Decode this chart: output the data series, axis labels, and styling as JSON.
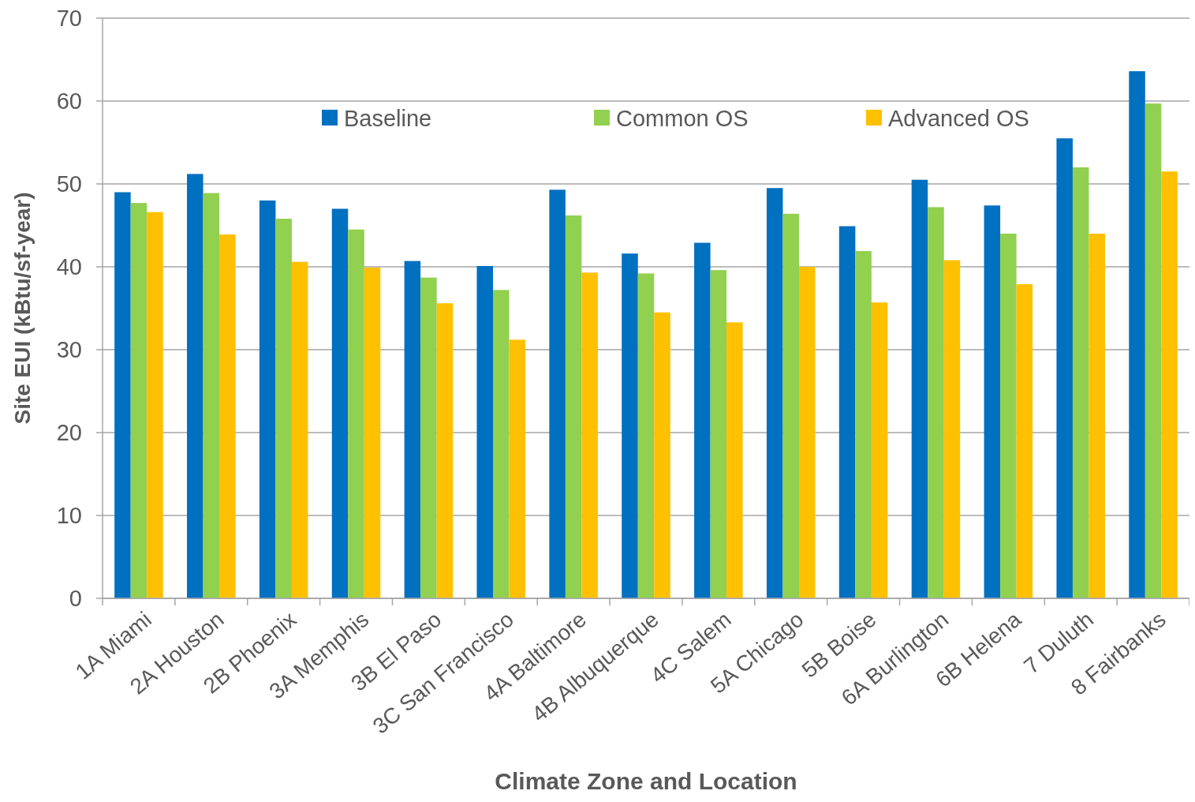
{
  "chart_data": {
    "type": "bar",
    "xlabel": "Climate Zone and Location",
    "ylabel": "Site EUI (kBtu/sf-year)",
    "categories": [
      "1A Miami",
      "2A Houston",
      "2B Phoenix",
      "3A Memphis",
      "3B El Paso",
      "3C San Francisco",
      "4A Baltimore",
      "4B Albuquerque",
      "4C Salem",
      "5A Chicago",
      "5B Boise",
      "6A Burlington",
      "6B Helena",
      "7 Duluth",
      "8 Fairbanks"
    ],
    "series": [
      {
        "name": "Baseline",
        "color": "#0070c0",
        "values": [
          49.0,
          51.2,
          48.0,
          47.0,
          40.7,
          40.1,
          49.3,
          41.6,
          42.9,
          49.5,
          44.9,
          50.5,
          47.4,
          55.5,
          63.6
        ]
      },
      {
        "name": "Common OS",
        "color": "#92d050",
        "values": [
          47.7,
          48.9,
          45.8,
          44.5,
          38.7,
          37.2,
          46.2,
          39.2,
          39.6,
          46.4,
          41.9,
          47.2,
          44.0,
          52.0,
          59.7
        ]
      },
      {
        "name": "Advanced OS",
        "color": "#ffc000",
        "values": [
          46.6,
          43.9,
          40.6,
          39.9,
          35.6,
          31.2,
          39.3,
          34.5,
          33.3,
          40.0,
          35.7,
          40.8,
          37.9,
          44.0,
          51.5
        ]
      }
    ],
    "ylim": [
      0,
      70
    ],
    "yticks": [
      0,
      10,
      20,
      30,
      40,
      50,
      60,
      70
    ],
    "grid": "y",
    "legend": "top"
  }
}
